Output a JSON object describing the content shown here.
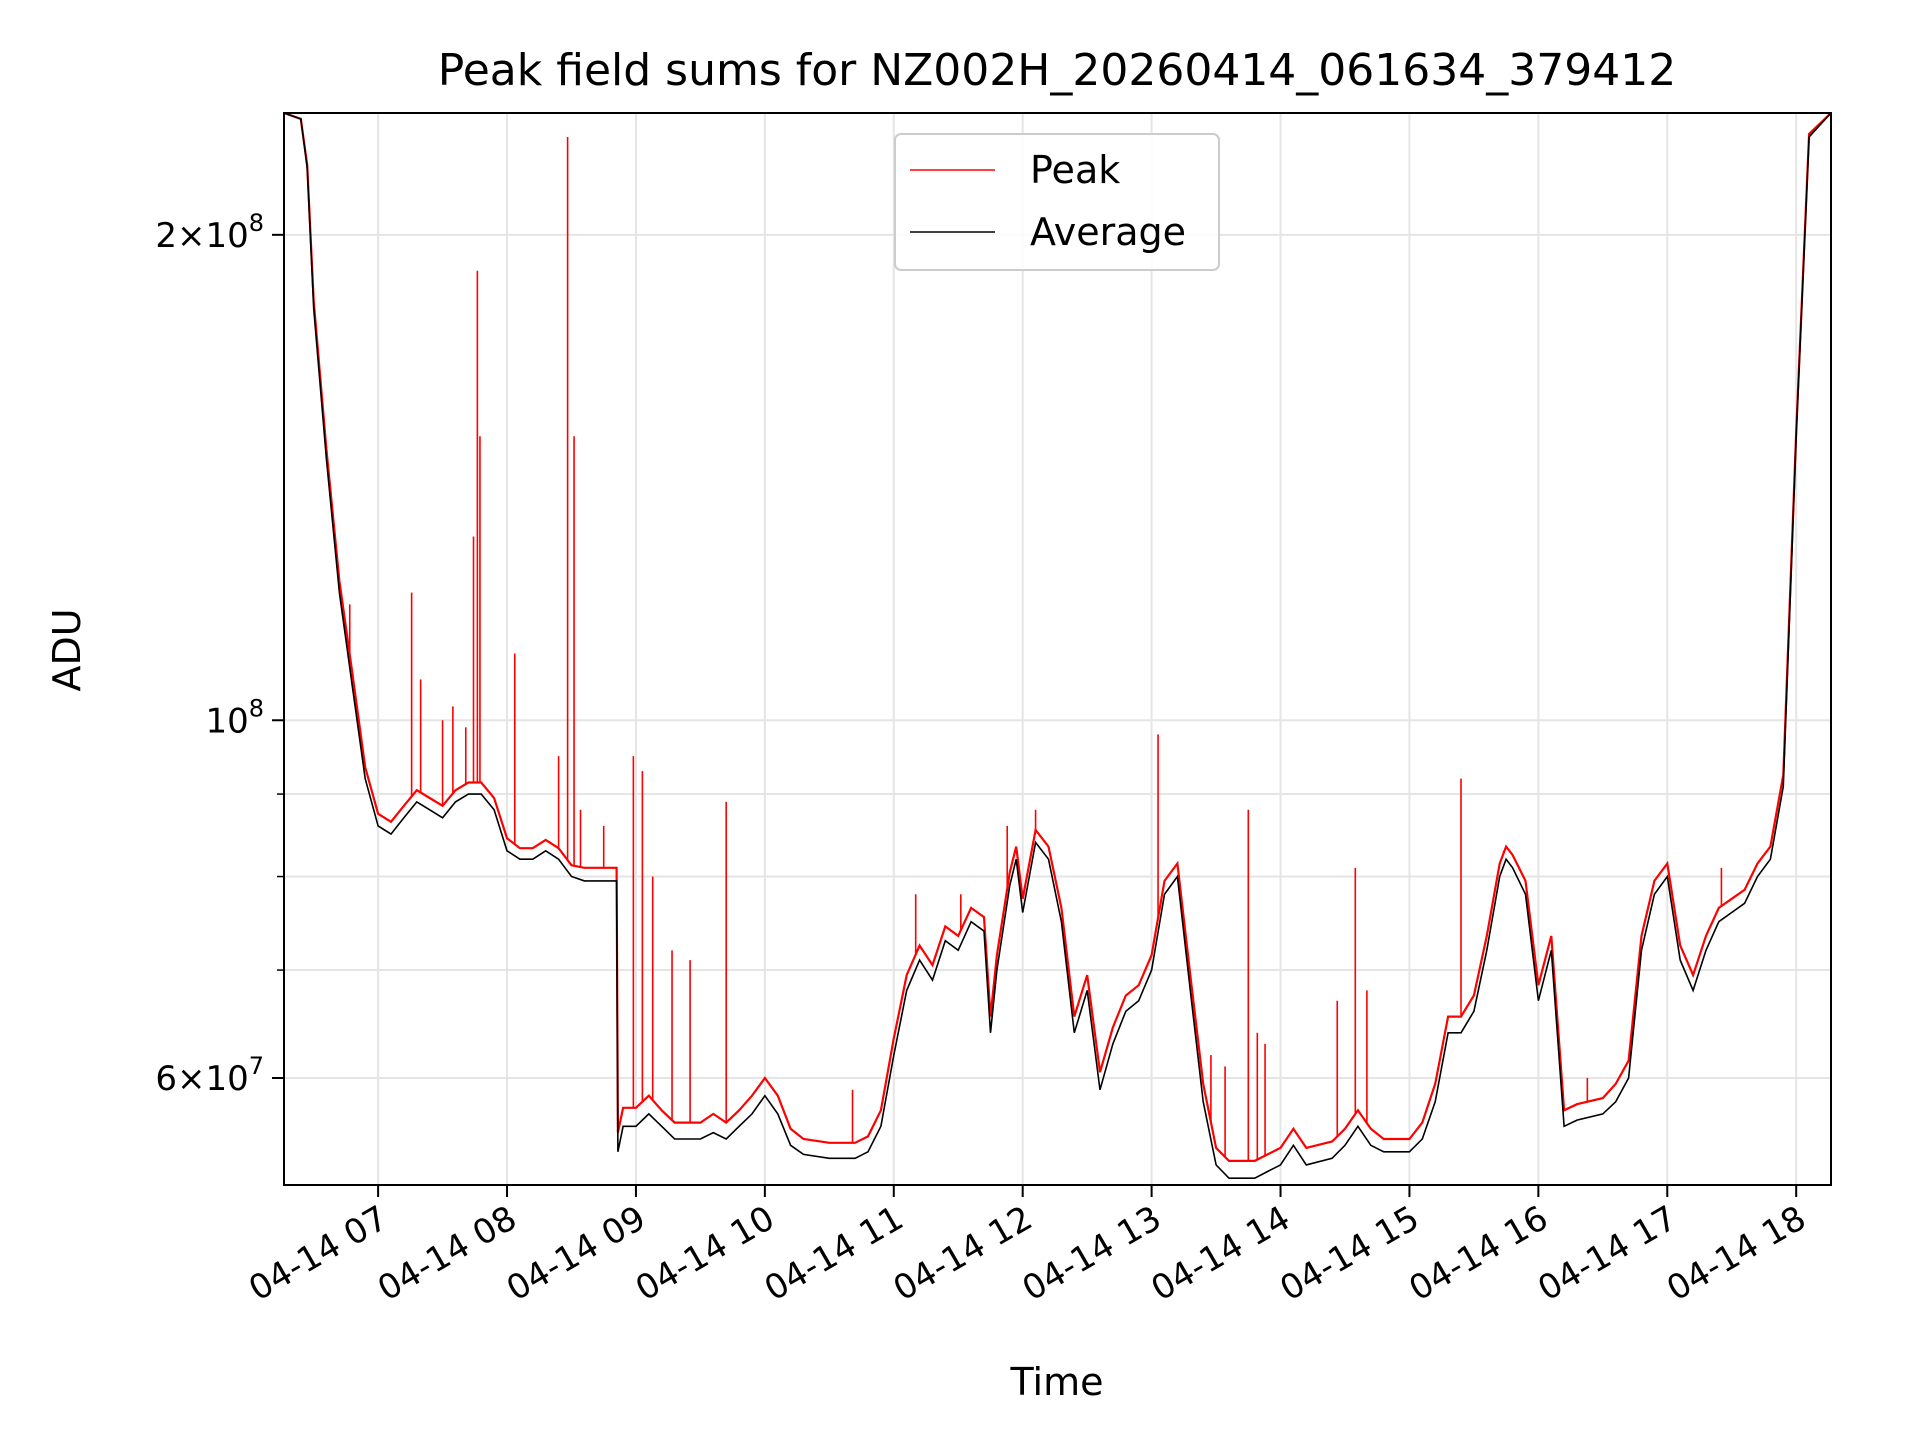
{
  "chart_data": {
    "type": "line",
    "title": "Peak field sums for NZ002H_20260414_061634_379412",
    "xlabel": "Time",
    "ylabel": "ADU",
    "yscale": "log",
    "ylim": [
      51500000,
      238000000
    ],
    "xlim_hours": [
      6.27,
      18.27
    ],
    "x_ticks": [
      {
        "hour": 7,
        "label": "04-14 07"
      },
      {
        "hour": 8,
        "label": "04-14 08"
      },
      {
        "hour": 9,
        "label": "04-14 09"
      },
      {
        "hour": 10,
        "label": "04-14 10"
      },
      {
        "hour": 11,
        "label": "04-14 11"
      },
      {
        "hour": 12,
        "label": "04-14 12"
      },
      {
        "hour": 13,
        "label": "04-14 13"
      },
      {
        "hour": 14,
        "label": "04-14 14"
      },
      {
        "hour": 15,
        "label": "04-14 15"
      },
      {
        "hour": 16,
        "label": "04-14 16"
      },
      {
        "hour": 17,
        "label": "04-14 17"
      },
      {
        "hour": 18,
        "label": "04-14 18"
      }
    ],
    "y_major_ticks": [
      {
        "value": 60000000,
        "mant": "6",
        "exp": "7"
      },
      {
        "value": 100000000,
        "mant": "",
        "exp": "8"
      },
      {
        "value": 200000000,
        "mant": "2",
        "exp": "8"
      }
    ],
    "y_minor_gridlines": [
      70000000,
      80000000,
      90000000
    ],
    "legend": {
      "position": "upper center",
      "entries": [
        {
          "label": "Peak",
          "color": "#ff0000"
        },
        {
          "label": "Average",
          "color": "#000000"
        }
      ]
    },
    "series": [
      {
        "name": "Average",
        "color": "#000000",
        "points": [
          [
            6.27,
            238
          ],
          [
            6.4,
            236
          ],
          [
            6.45,
            220
          ],
          [
            6.5,
            180
          ],
          [
            6.6,
            145
          ],
          [
            6.7,
            120
          ],
          [
            6.8,
            105
          ],
          [
            6.9,
            92
          ],
          [
            7.0,
            86
          ],
          [
            7.1,
            85
          ],
          [
            7.2,
            87
          ],
          [
            7.3,
            89
          ],
          [
            7.4,
            88
          ],
          [
            7.5,
            87
          ],
          [
            7.6,
            89
          ],
          [
            7.7,
            90
          ],
          [
            7.8,
            90
          ],
          [
            7.9,
            88
          ],
          [
            8.0,
            83
          ],
          [
            8.1,
            82
          ],
          [
            8.2,
            82
          ],
          [
            8.3,
            83
          ],
          [
            8.4,
            82
          ],
          [
            8.5,
            80
          ],
          [
            8.6,
            79.5
          ],
          [
            8.85,
            79.5
          ],
          [
            8.86,
            54
          ],
          [
            8.9,
            56
          ],
          [
            9.0,
            56
          ],
          [
            9.1,
            57
          ],
          [
            9.2,
            56
          ],
          [
            9.3,
            55
          ],
          [
            9.5,
            55
          ],
          [
            9.6,
            55.5
          ],
          [
            9.7,
            55
          ],
          [
            9.8,
            56
          ],
          [
            9.9,
            57
          ],
          [
            10.0,
            58.5
          ],
          [
            10.1,
            57
          ],
          [
            10.2,
            54.5
          ],
          [
            10.3,
            53.8
          ],
          [
            10.5,
            53.5
          ],
          [
            10.7,
            53.5
          ],
          [
            10.8,
            54
          ],
          [
            10.9,
            56
          ],
          [
            11.0,
            62
          ],
          [
            11.1,
            68
          ],
          [
            11.2,
            71
          ],
          [
            11.3,
            69
          ],
          [
            11.4,
            73
          ],
          [
            11.5,
            72
          ],
          [
            11.6,
            75
          ],
          [
            11.7,
            74
          ],
          [
            11.75,
            64
          ],
          [
            11.8,
            70
          ],
          [
            11.9,
            79
          ],
          [
            11.95,
            82
          ],
          [
            12.0,
            76
          ],
          [
            12.1,
            84
          ],
          [
            12.2,
            82
          ],
          [
            12.3,
            75
          ],
          [
            12.4,
            64
          ],
          [
            12.5,
            68
          ],
          [
            12.6,
            59
          ],
          [
            12.7,
            63
          ],
          [
            12.8,
            66
          ],
          [
            12.9,
            67
          ],
          [
            13.0,
            70
          ],
          [
            13.1,
            78
          ],
          [
            13.2,
            80
          ],
          [
            13.3,
            68
          ],
          [
            13.4,
            58
          ],
          [
            13.5,
            53
          ],
          [
            13.6,
            52
          ],
          [
            13.8,
            52
          ],
          [
            13.9,
            52.5
          ],
          [
            14.0,
            53
          ],
          [
            14.1,
            54.5
          ],
          [
            14.2,
            53
          ],
          [
            14.4,
            53.5
          ],
          [
            14.5,
            54.5
          ],
          [
            14.6,
            56
          ],
          [
            14.7,
            54.5
          ],
          [
            14.8,
            54
          ],
          [
            15.0,
            54
          ],
          [
            15.1,
            55
          ],
          [
            15.2,
            58
          ],
          [
            15.3,
            64
          ],
          [
            15.4,
            64
          ],
          [
            15.5,
            66
          ],
          [
            15.6,
            72
          ],
          [
            15.7,
            80
          ],
          [
            15.75,
            82
          ],
          [
            15.8,
            81
          ],
          [
            15.9,
            78
          ],
          [
            16.0,
            67
          ],
          [
            16.1,
            72
          ],
          [
            16.2,
            56
          ],
          [
            16.3,
            56.5
          ],
          [
            16.5,
            57
          ],
          [
            16.6,
            58
          ],
          [
            16.7,
            60
          ],
          [
            16.8,
            72
          ],
          [
            16.9,
            78
          ],
          [
            17.0,
            80
          ],
          [
            17.1,
            71
          ],
          [
            17.2,
            68
          ],
          [
            17.3,
            72
          ],
          [
            17.4,
            75
          ],
          [
            17.5,
            76
          ],
          [
            17.6,
            77
          ],
          [
            17.7,
            80
          ],
          [
            17.8,
            82
          ],
          [
            17.9,
            91
          ],
          [
            18.0,
            150
          ],
          [
            18.1,
            230
          ],
          [
            18.27,
            238
          ]
        ]
      },
      {
        "name": "Peak",
        "color": "#ff0000",
        "points": [
          [
            6.27,
            238
          ],
          [
            6.4,
            236
          ],
          [
            6.45,
            221
          ],
          [
            6.5,
            182
          ],
          [
            6.6,
            147
          ],
          [
            6.7,
            122
          ],
          [
            6.8,
            107
          ],
          [
            6.9,
            93.5
          ],
          [
            7.0,
            87.5
          ],
          [
            7.1,
            86.5
          ],
          [
            7.2,
            88.5
          ],
          [
            7.3,
            90.5
          ],
          [
            7.4,
            89.5
          ],
          [
            7.5,
            88.5
          ],
          [
            7.6,
            90.5
          ],
          [
            7.7,
            91.5
          ],
          [
            7.8,
            91.5
          ],
          [
            7.9,
            89.5
          ],
          [
            8.0,
            84.5
          ],
          [
            8.1,
            83.3
          ],
          [
            8.2,
            83.3
          ],
          [
            8.3,
            84.3
          ],
          [
            8.4,
            83.3
          ],
          [
            8.5,
            81.3
          ],
          [
            8.6,
            81
          ],
          [
            8.85,
            81
          ],
          [
            8.86,
            55.5
          ],
          [
            8.9,
            57.5
          ],
          [
            9.0,
            57.5
          ],
          [
            9.1,
            58.5
          ],
          [
            9.2,
            57.3
          ],
          [
            9.3,
            56.3
          ],
          [
            9.5,
            56.3
          ],
          [
            9.6,
            57
          ],
          [
            9.7,
            56.3
          ],
          [
            9.8,
            57.3
          ],
          [
            9.9,
            58.5
          ],
          [
            10.0,
            60
          ],
          [
            10.1,
            58.5
          ],
          [
            10.2,
            55.8
          ],
          [
            10.3,
            55
          ],
          [
            10.5,
            54.7
          ],
          [
            10.7,
            54.7
          ],
          [
            10.8,
            55.2
          ],
          [
            10.9,
            57.3
          ],
          [
            11.0,
            63.5
          ],
          [
            11.1,
            69.5
          ],
          [
            11.2,
            72.5
          ],
          [
            11.3,
            70.5
          ],
          [
            11.4,
            74.5
          ],
          [
            11.5,
            73.5
          ],
          [
            11.6,
            76.5
          ],
          [
            11.7,
            75.5
          ],
          [
            11.75,
            65.5
          ],
          [
            11.8,
            71.5
          ],
          [
            11.9,
            80.5
          ],
          [
            11.95,
            83.5
          ],
          [
            12.0,
            77.5
          ],
          [
            12.1,
            85.5
          ],
          [
            12.2,
            83.5
          ],
          [
            12.3,
            76.5
          ],
          [
            12.4,
            65.5
          ],
          [
            12.5,
            69.5
          ],
          [
            12.6,
            60.5
          ],
          [
            12.7,
            64.5
          ],
          [
            12.8,
            67.5
          ],
          [
            12.9,
            68.5
          ],
          [
            13.0,
            71.5
          ],
          [
            13.1,
            79.5
          ],
          [
            13.2,
            81.5
          ],
          [
            13.3,
            69.5
          ],
          [
            13.4,
            59.5
          ],
          [
            13.5,
            54.3
          ],
          [
            13.6,
            53.3
          ],
          [
            13.8,
            53.3
          ],
          [
            13.9,
            53.8
          ],
          [
            14.0,
            54.3
          ],
          [
            14.1,
            55.8
          ],
          [
            14.2,
            54.3
          ],
          [
            14.4,
            54.8
          ],
          [
            14.5,
            55.8
          ],
          [
            14.6,
            57.3
          ],
          [
            14.7,
            55.8
          ],
          [
            14.8,
            55
          ],
          [
            15.0,
            55
          ],
          [
            15.1,
            56.3
          ],
          [
            15.2,
            59.5
          ],
          [
            15.3,
            65.5
          ],
          [
            15.4,
            65.5
          ],
          [
            15.5,
            67.5
          ],
          [
            15.6,
            73.5
          ],
          [
            15.7,
            81.5
          ],
          [
            15.75,
            83.5
          ],
          [
            15.8,
            82.5
          ],
          [
            15.9,
            79.5
          ],
          [
            16.0,
            68.5
          ],
          [
            16.1,
            73.5
          ],
          [
            16.2,
            57.3
          ],
          [
            16.3,
            57.8
          ],
          [
            16.5,
            58.3
          ],
          [
            16.6,
            59.5
          ],
          [
            16.7,
            61.5
          ],
          [
            16.8,
            73.5
          ],
          [
            16.9,
            79.5
          ],
          [
            17.0,
            81.5
          ],
          [
            17.1,
            72.5
          ],
          [
            17.2,
            69.5
          ],
          [
            17.3,
            73.5
          ],
          [
            17.4,
            76.5
          ],
          [
            17.5,
            77.5
          ],
          [
            17.6,
            78.5
          ],
          [
            17.7,
            81.5
          ],
          [
            17.8,
            83.5
          ],
          [
            17.9,
            92.5
          ],
          [
            18.0,
            151
          ],
          [
            18.1,
            231
          ],
          [
            18.27,
            238
          ]
        ],
        "spikes": [
          [
            6.78,
            118
          ],
          [
            7.26,
            120
          ],
          [
            7.33,
            106
          ],
          [
            7.5,
            100
          ],
          [
            7.58,
            102
          ],
          [
            7.68,
            99
          ],
          [
            7.74,
            130
          ],
          [
            7.77,
            190
          ],
          [
            7.79,
            150
          ],
          [
            8.06,
            110
          ],
          [
            8.4,
            95
          ],
          [
            8.47,
            230
          ],
          [
            8.52,
            150
          ],
          [
            8.57,
            88
          ],
          [
            8.75,
            86
          ],
          [
            8.98,
            95
          ],
          [
            9.05,
            93
          ],
          [
            9.13,
            80
          ],
          [
            9.28,
            72
          ],
          [
            9.42,
            71
          ],
          [
            9.7,
            89
          ],
          [
            10.68,
            59
          ],
          [
            11.17,
            78
          ],
          [
            11.52,
            78
          ],
          [
            11.88,
            86
          ],
          [
            12.1,
            88
          ],
          [
            13.05,
            98
          ],
          [
            13.46,
            62
          ],
          [
            13.57,
            61
          ],
          [
            13.75,
            88
          ],
          [
            13.82,
            64
          ],
          [
            13.88,
            63
          ],
          [
            14.44,
            67
          ],
          [
            14.58,
            81
          ],
          [
            14.67,
            68
          ],
          [
            15.4,
            92
          ],
          [
            15.73,
            83
          ],
          [
            16.38,
            60
          ],
          [
            17.42,
            81
          ],
          [
            17.9,
            93
          ]
        ]
      }
    ]
  }
}
